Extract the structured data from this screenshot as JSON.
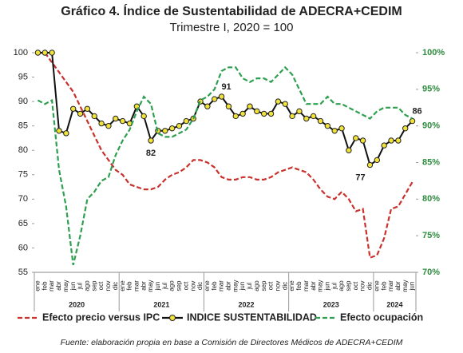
{
  "chart_data": {
    "type": "line",
    "title": "Gráfico 4. Índice de Sustentabilidad de ADECRA+CEDIM",
    "subtitle": "Trimestre I, 2020 = 100",
    "source": "Fuente: elaboración propia en base a Comisión de Directores Médicos de ADECRA+CEDIM",
    "categories": [
      "ene",
      "feb",
      "mar",
      "abr",
      "may",
      "jun",
      "jul",
      "ago",
      "sep",
      "oct",
      "nov",
      "dic",
      "ene",
      "feb",
      "mar",
      "abr",
      "may",
      "jun",
      "jul",
      "ago",
      "sep",
      "oct",
      "nov",
      "dic",
      "ene",
      "feb",
      "mar",
      "abr",
      "may",
      "jun",
      "jul",
      "ago",
      "sep",
      "oct",
      "nov",
      "dic",
      "ene",
      "feb",
      "mar",
      "abr",
      "may",
      "jun",
      "jul",
      "ago",
      "sep",
      "oct",
      "nov",
      "dic",
      "ene",
      "feb",
      "mar",
      "abr",
      "may",
      "jun"
    ],
    "year_labels": [
      "2020",
      "2021",
      "2022",
      "2023",
      "2024"
    ],
    "ylim": [
      55,
      100
    ],
    "yticks": [
      55,
      60,
      65,
      70,
      75,
      80,
      85,
      90,
      95,
      100
    ],
    "y2lim": [
      70,
      100
    ],
    "y2ticks": [
      {
        "value": 70,
        "label": "70%"
      },
      {
        "value": 75,
        "label": "75%"
      },
      {
        "value": 80,
        "label": "80%"
      },
      {
        "value": 85,
        "label": "85%"
      },
      {
        "value": 90,
        "label": "90%"
      },
      {
        "value": 95,
        "label": "95%"
      },
      {
        "value": 100,
        "label": "100%"
      }
    ],
    "grid": false,
    "series": [
      {
        "name": "Efecto precio versus IPC",
        "color": "#c8312c",
        "style": "dashed",
        "values": [
          100,
          100,
          98,
          96,
          94,
          92,
          89,
          86,
          83,
          80,
          78,
          76,
          75,
          73,
          72.5,
          72,
          72,
          72.5,
          74,
          75,
          75.5,
          76.5,
          78,
          78,
          77.5,
          76.5,
          74.5,
          74,
          74,
          74.5,
          74.5,
          74,
          74,
          74.5,
          75.5,
          76,
          76.5,
          76,
          75.5,
          74,
          72,
          70.5,
          70,
          71.5,
          70,
          67.5,
          68,
          58,
          58.5,
          62,
          68,
          68.5,
          71,
          73.5
        ]
      },
      {
        "name": "INDICE SUSTENTABILIDAD",
        "color": "#111111",
        "marker_color": "#f2e33a",
        "style": "solid",
        "values": [
          100,
          100,
          100,
          84,
          83.5,
          88.5,
          87.5,
          88.5,
          87,
          85.5,
          85,
          86.5,
          86,
          85.5,
          89,
          87,
          82,
          84,
          84,
          84.5,
          85,
          86,
          86.5,
          90,
          89,
          90.5,
          91,
          89,
          87,
          87.5,
          89,
          88,
          87.5,
          87.5,
          90,
          89.5,
          87,
          88,
          86.5,
          87,
          86,
          85,
          84,
          84.5,
          80,
          82.5,
          82,
          77,
          78,
          81,
          82,
          82,
          84.5,
          86
        ],
        "value_labels": [
          null,
          null,
          null,
          null,
          null,
          null,
          null,
          null,
          null,
          null,
          null,
          null,
          null,
          null,
          null,
          null,
          "82",
          null,
          null,
          null,
          null,
          null,
          null,
          null,
          null,
          null,
          "91",
          null,
          null,
          null,
          null,
          null,
          null,
          null,
          null,
          null,
          null,
          null,
          null,
          null,
          null,
          null,
          null,
          null,
          null,
          null,
          null,
          "77",
          null,
          null,
          null,
          null,
          null,
          "86"
        ]
      },
      {
        "name": "Efecto ocupación",
        "color": "#2e9e4f",
        "style": "dashed",
        "axis": "y2",
        "values": [
          93.5,
          93,
          93.5,
          84,
          79,
          71,
          75,
          80,
          81,
          82.5,
          83,
          86,
          88,
          89.5,
          92,
          94,
          93,
          89,
          88.5,
          88.5,
          89,
          89.5,
          91,
          93.5,
          94,
          95,
          97.5,
          98,
          98,
          96.5,
          96,
          96.5,
          96.5,
          96,
          97,
          98,
          97,
          95,
          93,
          93,
          93,
          94,
          93,
          93,
          92.5,
          92,
          91.5,
          91,
          92,
          92.5,
          92.5,
          92.5,
          91.5,
          91
        ]
      }
    ]
  }
}
